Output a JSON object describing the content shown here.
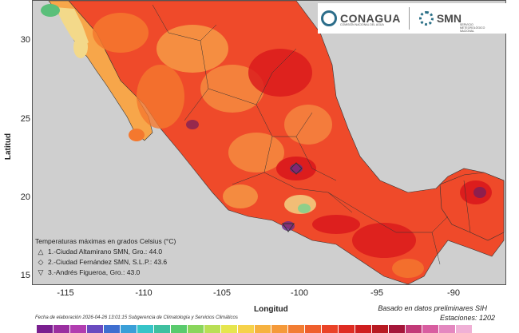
{
  "header": {
    "conagua_name": "CONAGUA",
    "conagua_subtitle": "COMISIÓN NACIONAL DEL AGUA",
    "smn_name": "SMN",
    "smn_subtitle": "SERVICIO METEOROLÓGICO NACIONAL"
  },
  "axes": {
    "y_label": "Latitud",
    "x_label": "Longitud",
    "y_ticks": [
      "30",
      "25",
      "20",
      "15"
    ],
    "x_ticks": [
      "-115",
      "-110",
      "-105",
      "-100",
      "-95",
      "-90"
    ]
  },
  "legend": {
    "title": "Temperaturas máximas en grados Celsius (°C)",
    "entries": [
      {
        "symbol": "△",
        "text": "1.-Ciudad Altamirano SMN, Gro.: 44.0"
      },
      {
        "symbol": "◇",
        "text": "2.-Ciudad Fernández SMN, S.L.P.: 43.6"
      },
      {
        "symbol": "▽",
        "text": "3.-Andrés Figueroa, Gro.: 43.0"
      }
    ]
  },
  "footer": {
    "elaboration": "Fecha de elaboración 2026-04-26 13:01:15 Subgerencia de Climatología y Servicios Climáticos",
    "basis": "Basado en datos preliminares SIH",
    "stations": "Estaciones:   1202"
  },
  "colors": {
    "sea": "#cfcfcf",
    "land_base": "#ef4a2a",
    "hot_core": "#d9181c",
    "warm": "#f4782e",
    "mild": "#f7a64a",
    "cool": "#f3d98a",
    "green": "#8fcf8a",
    "purple": "#6a2a8a",
    "scale": [
      "#7a1f8f",
      "#9b2fa0",
      "#b13db0",
      "#6a4bc0",
      "#3f6fd0",
      "#3a9fd8",
      "#36c4c8",
      "#3fc0a0",
      "#5acb6e",
      "#8ad65c",
      "#b9df55",
      "#e6e64e",
      "#f6d24a",
      "#f6b240",
      "#f59a3a",
      "#f27d33",
      "#ef5f2d",
      "#ea4327",
      "#df2c22",
      "#cf1e1f",
      "#b81a22",
      "#a5163a",
      "#c23a78",
      "#d85da0",
      "#e488c0",
      "#f0b0d6"
    ]
  }
}
